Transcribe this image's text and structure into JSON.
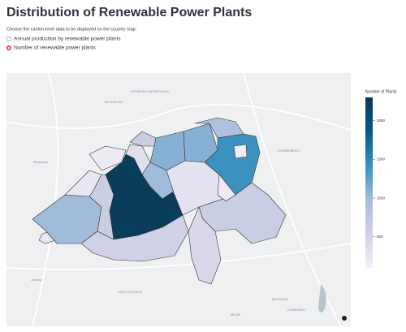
{
  "header": {
    "title": "Distribution of Renewable Power Plants"
  },
  "controls": {
    "prompt": "Choose the canton-level data to be displayed on the country map:",
    "options": [
      "Annual production by renewable power plants",
      "Number of renewable power plants"
    ],
    "selected": 1
  },
  "map": {
    "place_labels": [
      "FREIBURG IM BREISGAU",
      "MULHOUSE",
      "Besançon",
      "VORARLBERG",
      "VALLE D'AOSTA",
      "MILAN",
      "BERGAMO",
      "LOMBARDY",
      "Annecy"
    ],
    "region_values": [
      250,
      1000,
      250,
      200,
      2250,
      600,
      550,
      350,
      600,
      1100,
      1000,
      1100,
      300,
      900,
      1400,
      150,
      200,
      600,
      450
    ],
    "colorbar": {
      "title": "Number of Plants",
      "lim": [
        100,
        2300
      ],
      "ticks": [
        500,
        1000,
        1500,
        2000
      ],
      "colorscale": [
        "#f5f1f8",
        "#d0d1e6",
        "#a6bddb",
        "#3690c0",
        "#045a8d",
        "#0b3954"
      ]
    }
  }
}
